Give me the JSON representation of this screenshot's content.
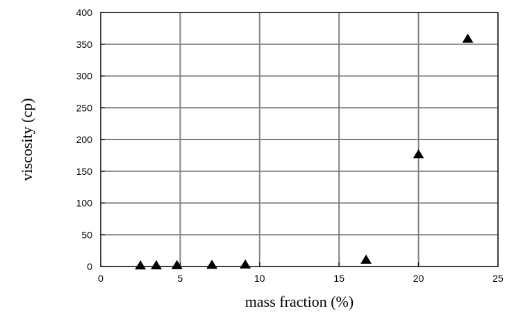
{
  "chart_data": {
    "type": "scatter",
    "title": "",
    "xlabel": "mass fraction (%)",
    "ylabel": "viscosity (cp)",
    "xlim": [
      0,
      25
    ],
    "ylim": [
      0,
      400
    ],
    "x_ticks": [
      0,
      5,
      10,
      15,
      20,
      25
    ],
    "y_ticks": [
      0,
      50,
      100,
      150,
      200,
      250,
      300,
      350,
      400
    ],
    "x_tick_labels": [
      "0",
      "5",
      "10",
      "15",
      "20",
      "25"
    ],
    "y_tick_labels": [
      "0",
      "50",
      "100",
      "150",
      "200",
      "250",
      "300",
      "350",
      "400"
    ],
    "grid": true,
    "marker": "filled-triangle",
    "series": [
      {
        "x": [
          2.5,
          3.5,
          4.8,
          7.0,
          9.1,
          16.7,
          20.0,
          23.1
        ],
        "y": [
          1.0,
          1.2,
          1.5,
          2.0,
          2.5,
          10.0,
          176.0,
          358.0
        ]
      }
    ],
    "colors": {
      "marker": "#000000",
      "grid": "#808080",
      "axes": "#000000"
    }
  }
}
